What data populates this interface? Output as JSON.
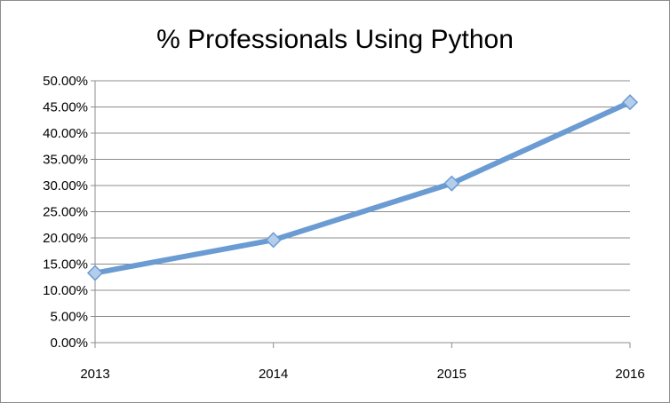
{
  "chart_data": {
    "type": "line",
    "title": "% Professionals Using Python",
    "xlabel": "",
    "ylabel": "",
    "categories": [
      "2013",
      "2014",
      "2015",
      "2016"
    ],
    "series": [
      {
        "values": [
          13.3,
          19.6,
          30.4,
          45.9
        ]
      }
    ],
    "ylim": [
      0,
      50
    ],
    "y_tick_labels": [
      "0.00%",
      "5.00%",
      "10.00%",
      "15.00%",
      "20.00%",
      "25.00%",
      "30.00%",
      "35.00%",
      "40.00%",
      "45.00%",
      "50.00%"
    ],
    "grid": true,
    "legend": "none",
    "marker": "diamond",
    "line_color": "#6a9bd3",
    "marker_color": "#b4cdea"
  }
}
